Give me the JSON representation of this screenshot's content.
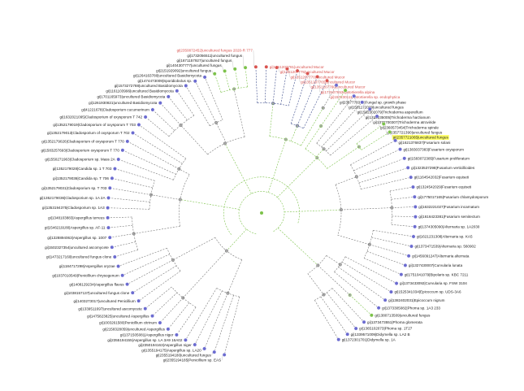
{
  "colors": {
    "red": "#d9534f",
    "green": "#7cc24a",
    "blue": "#6b6bd0",
    "branch": "#888888",
    "highlight": "#ffff66"
  },
  "highlighted_leaf": 57,
  "leaves": [
    {
      "label": "gi|2355194185|Penicillium sp. EAS",
      "g": "blue"
    },
    {
      "label": "gi|2355194180|uncultured fungus",
      "g": "blue"
    },
    {
      "label": "gi|1355194175|Aspergillus sp. LA20",
      "g": "blue"
    },
    {
      "label": "gi|2350194163|Aspergillus niger",
      "g": "blue"
    },
    {
      "label": "gi|2355194155|Aspergillus sp. LA 3A9 16A02",
      "g": "blue"
    },
    {
      "label": "gi|1371505081|Aspergillus niger",
      "g": "blue"
    },
    {
      "label": "gi|2158328059|uncultured Aspergillus",
      "g": "blue"
    },
    {
      "label": "gi|1003261580|Penicillium citrinum",
      "g": "blue"
    },
    {
      "label": "gi|1475823825|uncultured Aspergillus",
      "g": "blue"
    },
    {
      "label": "gi|1339511697|uncultured ascomycete",
      "g": "blue"
    },
    {
      "label": "gi|1403273017|uncultured Penicillium",
      "g": "blue"
    },
    {
      "label": "gi|1038157137|uncultured fungus clone",
      "g": "blue"
    },
    {
      "label": "gi|1408129234|Aspergillus flavus",
      "g": "blue"
    },
    {
      "label": "gi|1037010549|Penicillium chrysogenum",
      "g": "blue"
    },
    {
      "label": "gi|1184717298|Aspergillus oryzae",
      "g": "blue"
    },
    {
      "label": "gi|1473217160|uncultured fungus clone",
      "g": "blue"
    },
    {
      "label": "gi|1502327354|uncultured ascomycete",
      "g": "blue"
    },
    {
      "label": "gi|1328894063|Aspergillus sp. 1007",
      "g": "blue"
    },
    {
      "label": "gi|1546219180|Aspergillus sp. AF-11",
      "g": "blue"
    },
    {
      "label": "gi|1348103883|Aspergillus terreus",
      "g": "blue"
    },
    {
      "label": "gi|1353194375|Cladosporium sp. 1A3",
      "g": "blue"
    },
    {
      "label": "gi|1352179036|Cladosporium sp. 1A 2A",
      "g": "blue"
    },
    {
      "label": "gi|1352179031|Cladosporium sp. T 703",
      "g": "blue"
    },
    {
      "label": "gi|1352179036|Candida sp. T 706",
      "g": "blue"
    },
    {
      "label": "gi|1352179028|Candida sp. 1 T 703",
      "g": "blue"
    },
    {
      "label": "gi|1550271963|Cladosporium sp. Mass 2A",
      "g": "blue"
    },
    {
      "label": "gi|1583257693|Cladosporium oxysporum T 770",
      "g": "blue"
    },
    {
      "label": "gi|1352179026|Cladosporium of oxysporum T 770",
      "g": "blue"
    },
    {
      "label": "gi|1352179013|Cladosporium of oxysporum T 702",
      "g": "blue"
    },
    {
      "label": "gi|1352179019|Cladosporium of oxysporum T 703",
      "g": "blue"
    },
    {
      "label": "gi|1632021095|Cladosporium of oxysporum T 742",
      "g": "blue"
    },
    {
      "label": "gi|41221678|Cladosporium cucumerinum",
      "g": "blue"
    },
    {
      "label": "gi|1261930821|uncultured Basidiomycota",
      "g": "blue"
    },
    {
      "label": "gi|1701165973|uncultured Basidiomycota",
      "g": "blue"
    },
    {
      "label": "gi|1161103996|uncultured Basidiomycota",
      "g": "blue"
    },
    {
      "label": "gi|1573272788|uncultured Basidiomycota",
      "g": "blue"
    },
    {
      "label": "gi|1474473009|Sporidiobolus sp.",
      "g": "blue"
    },
    {
      "label": "gi|1264163780|uncultured Basidiomycota",
      "g": "blue"
    },
    {
      "label": "gi|2151929092|uncultured fungus",
      "g": "green"
    },
    {
      "label": "gi|1404307777|uncultured fungus",
      "g": "green"
    },
    {
      "label": "gi|1671157927|uncultured fungus",
      "g": "green"
    },
    {
      "label": "gi|1732056511|uncultured fungus",
      "g": "green"
    },
    {
      "label": "gi|2350872452|uncultured fungus 2020-R 777",
      "g": "red"
    },
    {
      "label": "gi|1351207781|uncultured Mucor",
      "g": "red"
    },
    {
      "label": "gi|1351207775|uncultured Mucor",
      "g": "red"
    },
    {
      "label": "gi|1351207770|uncultured Mucor",
      "g": "red"
    },
    {
      "label": "gi|1351207765|uncultured Mucor",
      "g": "red"
    },
    {
      "label": "gi|1351207760|uncultured Mucor",
      "g": "red"
    },
    {
      "label": "gi|1731076530|Mortierella alpina",
      "g": "red"
    },
    {
      "label": "gi|1572301117|Mortierella sp. endophytica",
      "g": "red"
    },
    {
      "label": "gi|2357778377|Fungal sp. growth phase",
      "g": "blue"
    },
    {
      "label": "gi|1581172009|uncultured fungus",
      "g": "green"
    },
    {
      "label": "gi|1582302079|Trichoderma asperellum",
      "g": "blue"
    },
    {
      "label": "gi|1325235005|Trichoderma harzianum",
      "g": "blue"
    },
    {
      "label": "gi|1376700307|Trichoderma atroviride",
      "g": "blue"
    },
    {
      "label": "gi|2360573454|Trichoderma spirale",
      "g": "blue"
    },
    {
      "label": "gi|2357721390|uncultured fungus",
      "g": "green"
    },
    {
      "label": "gi|2357721065|uncultured fungus",
      "g": "green"
    },
    {
      "label": "gi|1621376837|Fusarium solani",
      "g": "blue"
    },
    {
      "label": "gi|1383037383|Fusarium oxysporum",
      "g": "blue"
    },
    {
      "label": "gi|1583072385|Fusarium proliferatum",
      "g": "blue"
    },
    {
      "label": "gi|1323537298|Fusarium verticillioides",
      "g": "blue"
    },
    {
      "label": "gi|1164542032|Fusarium equiseti",
      "g": "blue"
    },
    {
      "label": "gi|1324542029|Fusarium equiseti",
      "g": "blue"
    },
    {
      "label": "gi|1775017165|Fusarium chlamydosporum",
      "g": "blue"
    },
    {
      "label": "gi|1632221027|Fusarium incarnatum",
      "g": "blue"
    },
    {
      "label": "gi|1616423381|Fusarium semitectum",
      "g": "blue"
    },
    {
      "label": "gi|1374305090|Alternaria sp. 1A2030",
      "g": "blue"
    },
    {
      "label": "gi|1621231308|Alternaria sp. KA5",
      "g": "blue"
    },
    {
      "label": "gi|1373471539|Alternaria sp. 560902",
      "g": "blue"
    },
    {
      "label": "gi|1456091247|Alternaria alternata",
      "g": "blue"
    },
    {
      "label": "gi|1327430007|Curvularia lunata",
      "g": "blue"
    },
    {
      "label": "gi|1751041079|Bipolaris sp. KBC 7211",
      "g": "blue"
    },
    {
      "label": "gi|1373433092|Curvularia sp. FSW 3104",
      "g": "blue"
    },
    {
      "label": "gi|1525341034|Epicoccum sp. UDS-3A6",
      "g": "blue"
    },
    {
      "label": "gi|1382402031|Epicoccum nigrum",
      "g": "blue"
    },
    {
      "label": "gi|1373305082|Phoma sp. 1A3 233",
      "g": "blue"
    },
    {
      "label": "gi|1380713509|uncultured fungus",
      "g": "green"
    },
    {
      "label": "gi|1373473551|Phoma glomerata",
      "g": "blue"
    },
    {
      "label": "gi|1365102073|Phoma sp. 1T27",
      "g": "blue"
    },
    {
      "label": "gi|1339571009|Didymella sp. LA2 B",
      "g": "blue"
    },
    {
      "label": "gi|1372301701|Didymella sp. 1A",
      "g": "blue"
    }
  ]
}
